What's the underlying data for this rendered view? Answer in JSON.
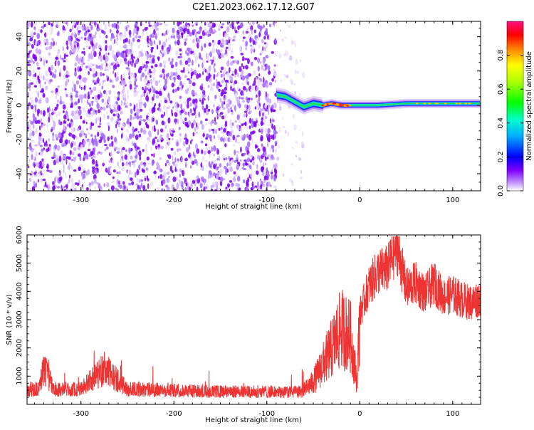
{
  "title": "C2E1.2023.062.17.12.G07",
  "colors": {
    "snr": "#ee3333",
    "background": "#ffffff"
  },
  "chart_data": [
    {
      "type": "heatmap",
      "xlabel": "Height of straight line (km)",
      "ylabel": "Frequency (Hz)",
      "xlim": [
        -358,
        130
      ],
      "ylim": [
        -50,
        49
      ],
      "x_ticks": [
        -300,
        -200,
        -100,
        0,
        100
      ],
      "y_ticks": [
        -40,
        -20,
        0,
        20,
        40
      ],
      "noise_region_x": [
        -358,
        -60
      ],
      "signal_track": {
        "x_range": [
          -90,
          130
        ],
        "points": [
          [
            -90,
            6
          ],
          [
            -80,
            5
          ],
          [
            -70,
            2
          ],
          [
            -60,
            -1
          ],
          [
            -50,
            1
          ],
          [
            -40,
            0
          ],
          [
            -30,
            1
          ],
          [
            -20,
            0
          ],
          [
            -10,
            0
          ],
          [
            0,
            0
          ],
          [
            20,
            0
          ],
          [
            50,
            1
          ],
          [
            80,
            1
          ],
          [
            100,
            1
          ],
          [
            130,
            1
          ]
        ],
        "peak_x_range": [
          -40,
          -10
        ]
      },
      "colorbar": {
        "label": "Normalized spectral amplitude",
        "range": [
          0,
          1
        ],
        "ticks": [
          "0.0",
          "0.2",
          "0.4",
          "0.6",
          "0.8"
        ]
      }
    },
    {
      "type": "line",
      "xlabel": "Height of straight line (km)",
      "ylabel": "SNR (10 * v/v)",
      "xlim": [
        -358,
        130
      ],
      "ylim": [
        0,
        6000
      ],
      "x_ticks": [
        -300,
        -200,
        -100,
        0,
        100
      ],
      "y_ticks": [
        1000,
        2000,
        3000,
        4000,
        5000,
        6000
      ],
      "series": [
        {
          "x": [
            -358,
            -345,
            -340,
            -330,
            -300,
            -275,
            -250,
            -200,
            -150,
            -100,
            -80,
            -60,
            -50,
            -40,
            -30,
            -20,
            -10,
            -3,
            0,
            10,
            20,
            30,
            40,
            50,
            60,
            70,
            80,
            90,
            100,
            110,
            120,
            130
          ],
          "y": [
            600,
            600,
            1500,
            600,
            600,
            1400,
            600,
            550,
            500,
            500,
            480,
            500,
            800,
            1400,
            2000,
            2700,
            2400,
            800,
            3200,
            4200,
            4700,
            4800,
            5600,
            4100,
            4300,
            3900,
            4300,
            3800,
            3900,
            3700,
            3600,
            3800
          ]
        }
      ]
    }
  ]
}
